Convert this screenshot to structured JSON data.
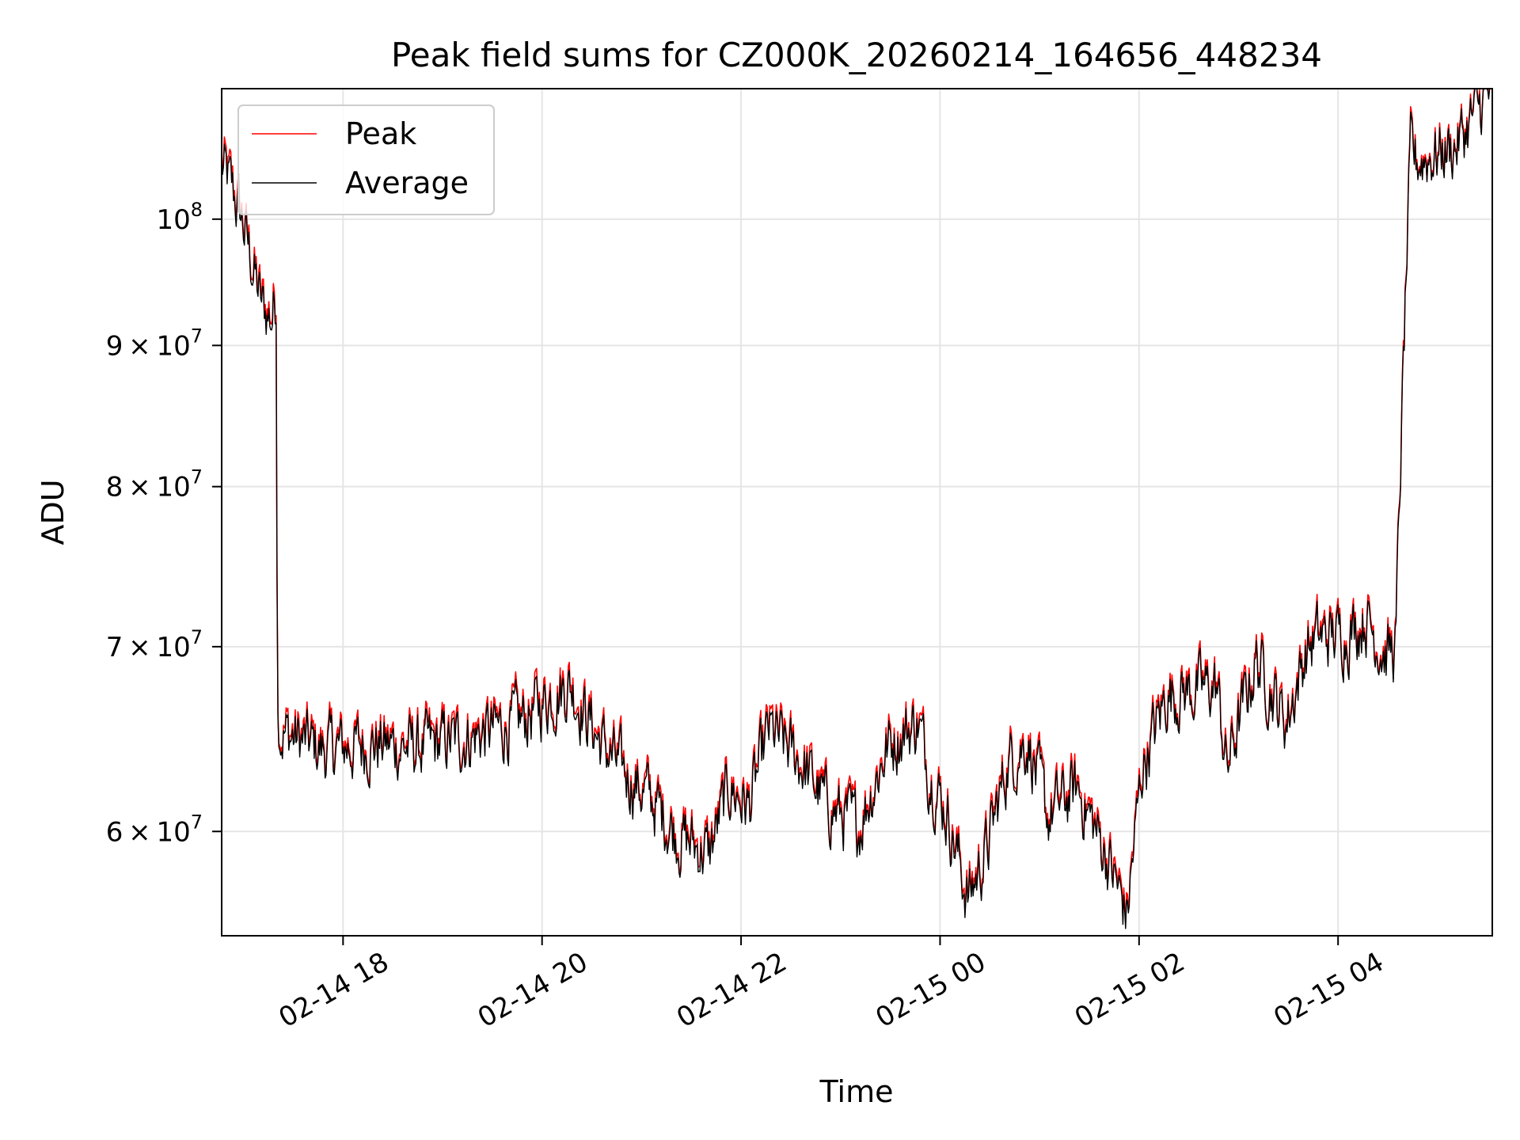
{
  "chart_data": {
    "type": "line",
    "title": "Peak field sums for CZ000K_20260214_164656_448234",
    "xlabel": "Time",
    "ylabel": "ADU",
    "yscale": "log",
    "grid": true,
    "legend_position": "top-left",
    "x_unit": "hours since 02-14 16:47",
    "xlim": [
      0,
      12.77
    ],
    "ylim": [
      55000000,
      111500000
    ],
    "x_ticks": [
      {
        "x": 1.22,
        "label": "02-14 18"
      },
      {
        "x": 3.22,
        "label": "02-14 20"
      },
      {
        "x": 5.22,
        "label": "02-14 22"
      },
      {
        "x": 7.22,
        "label": "02-15 00"
      },
      {
        "x": 9.22,
        "label": "02-15 02"
      },
      {
        "x": 11.22,
        "label": "02-15 04"
      }
    ],
    "y_ticks": [
      {
        "y": 60000000,
        "mantissa": "6",
        "exp": "7"
      },
      {
        "y": 70000000,
        "mantissa": "7",
        "exp": "7"
      },
      {
        "y": 80000000,
        "mantissa": "8",
        "exp": "7"
      },
      {
        "y": 90000000,
        "mantissa": "9",
        "exp": "7"
      },
      {
        "y": 100000000,
        "mantissa": "",
        "exp": "8"
      }
    ],
    "series": [
      {
        "name": "Peak",
        "color": "#ff0000",
        "x": [
          0,
          0.1,
          0.2,
          0.3,
          0.4,
          0.5,
          0.55,
          0.56,
          0.6,
          1.0,
          1.5,
          2.0,
          2.5,
          3.0,
          3.3,
          3.5,
          3.8,
          4.0,
          4.3,
          4.6,
          4.9,
          5.1,
          5.3,
          5.5,
          5.8,
          6.1,
          6.4,
          6.7,
          7.0,
          7.1,
          7.3,
          7.5,
          7.7,
          7.9,
          8.1,
          8.3,
          8.6,
          8.9,
          9.1,
          9.25,
          9.5,
          9.8,
          10.0,
          10.1,
          10.4,
          10.7,
          10.9,
          11.0,
          11.3,
          11.5,
          11.7,
          11.8,
          11.95,
          12.0,
          12.4,
          12.77
        ],
        "y": [
          105000000,
          103000000,
          100500000,
          97000000,
          93500000,
          92500000,
          94500000,
          67000000,
          65500000,
          64500000,
          64800000,
          64600000,
          65200000,
          66000000,
          67500000,
          68200000,
          65000000,
          63500000,
          62000000,
          60000000,
          59200000,
          62500000,
          61500000,
          65500000,
          64000000,
          61500000,
          60500000,
          64800000,
          66000000,
          63500000,
          61000000,
          57000000,
          59500000,
          63800000,
          65000000,
          61000000,
          62500000,
          59000000,
          56200000,
          63500000,
          67500000,
          67800000,
          68000000,
          63500000,
          69500000,
          66000000,
          70000000,
          70800000,
          71000000,
          72000000,
          69800000,
          70200000,
          106000000,
          105300000,
          106500000,
          112000000
        ]
      },
      {
        "name": "Average",
        "color": "#000000",
        "x": [
          0,
          0.1,
          0.2,
          0.3,
          0.4,
          0.5,
          0.55,
          0.56,
          0.6,
          1.0,
          1.5,
          2.0,
          2.5,
          3.0,
          3.3,
          3.5,
          3.8,
          4.0,
          4.3,
          4.6,
          4.9,
          5.1,
          5.3,
          5.5,
          5.8,
          6.1,
          6.4,
          6.7,
          7.0,
          7.1,
          7.3,
          7.5,
          7.7,
          7.9,
          8.1,
          8.3,
          8.6,
          8.9,
          9.1,
          9.25,
          9.5,
          9.8,
          10.0,
          10.1,
          10.4,
          10.7,
          10.9,
          11.0,
          11.3,
          11.5,
          11.7,
          11.8,
          11.95,
          12.0,
          12.4,
          12.77
        ],
        "y": [
          104500000,
          102500000,
          100000000,
          96500000,
          93000000,
          92000000,
          93800000,
          66700000,
          65200000,
          64200000,
          64500000,
          64300000,
          64900000,
          65700000,
          67100000,
          67800000,
          64700000,
          63200000,
          61700000,
          59700000,
          58900000,
          62200000,
          61200000,
          65200000,
          63700000,
          61200000,
          60200000,
          64500000,
          65700000,
          63200000,
          60700000,
          56700000,
          59200000,
          63500000,
          64700000,
          60700000,
          62200000,
          58700000,
          55900000,
          63200000,
          67200000,
          67500000,
          67700000,
          63200000,
          69200000,
          65700000,
          69700000,
          70500000,
          70700000,
          71700000,
          69500000,
          69900000,
          105700000,
          105000000,
          106200000,
          111700000
        ]
      }
    ]
  }
}
